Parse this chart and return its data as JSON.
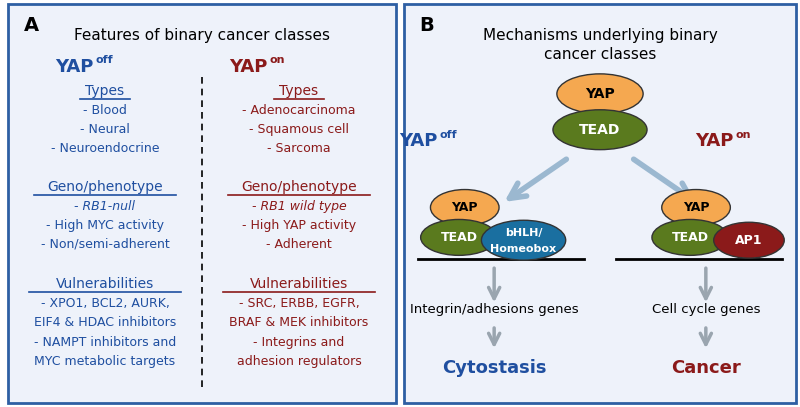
{
  "panel_A": {
    "title": "Features of binary cancer classes",
    "left_color": "#1f4fa0",
    "right_color": "#8b1a1a",
    "sections": [
      {
        "heading": "Types",
        "left_items": [
          "- Blood",
          "- Neural",
          "- Neuroendocrine"
        ],
        "right_items": [
          "- Adenocarcinoma",
          "- Squamous cell",
          "- Sarcoma"
        ]
      },
      {
        "heading": "Geno/phenotype",
        "left_items": [
          "- RB1-null",
          "- High MYC activity",
          "- Non/semi-adherent"
        ],
        "right_items": [
          "- RB1 wild type",
          "- High YAP activity",
          "- Adherent"
        ]
      },
      {
        "heading": "Vulnerabilities",
        "left_items": [
          "- XPO1, BCL2, AURK,",
          "EIF4 & HDAC inhibitors",
          "- NAMPT inhibitors and",
          "MYC metabolic targets"
        ],
        "right_items": [
          "- SRC, ERBB, EGFR,",
          "BRAF & MEK inhibitors",
          "- Integrins and",
          "adhesion regulators"
        ]
      }
    ]
  },
  "panel_B": {
    "title": "Mechanisms underlying binary\ncancer classes",
    "left_color": "#1f4fa0",
    "right_color": "#8b1a1a",
    "yap_color": "#f5a850",
    "tead_color": "#5a7a1e",
    "bhlh_color": "#1a6fa0",
    "ap1_color": "#8b1a1a",
    "integrin_text": "Integrin/adhesions genes",
    "cell_cycle_text": "Cell cycle genes",
    "cytostasis_text": "Cytostasis",
    "cancer_text": "Cancer"
  },
  "background_color": "#ffffff",
  "border_color": "#2e5fa3"
}
